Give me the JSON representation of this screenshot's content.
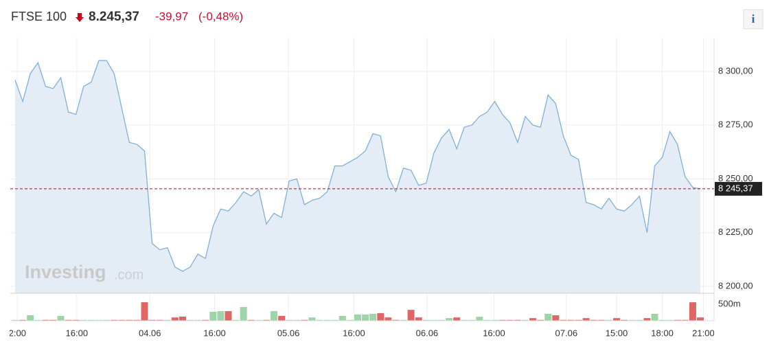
{
  "header": {
    "name": "FTSE 100",
    "price": "8.245,37",
    "change": "-39,97",
    "change_percent": "(-0,48%)",
    "info": "i"
  },
  "chart_data": {
    "type": "line",
    "watermark": [
      "Investing",
      ".com"
    ],
    "line_color": "#7fb0d8",
    "area_color": "#e4edf5",
    "up_color": "#9fd3a8",
    "down_color": "#e06666",
    "values": [
      8296,
      8286,
      8299,
      8304,
      8293,
      8292,
      8297,
      8281,
      8280,
      8293,
      8295,
      8305,
      8305,
      8299,
      8283,
      8267,
      8266,
      8263,
      8220,
      8217,
      8218,
      8209,
      8207,
      8209,
      8215,
      8213,
      8228,
      8236,
      8235,
      8239,
      8244,
      8242,
      8245,
      8229,
      8234,
      8232,
      8249,
      8250,
      8238,
      8240,
      8241,
      8244,
      8256,
      8256,
      8258,
      8260,
      8263,
      8271,
      8270,
      8251,
      8244,
      8255,
      8254,
      8247,
      8248,
      8262,
      8269,
      8273,
      8264,
      8274,
      8275,
      8279,
      8281,
      8286,
      8280,
      8276,
      8267,
      8279,
      8275,
      8274,
      8289,
      8285,
      8270,
      8261,
      8259,
      8239,
      8238,
      8236,
      8241,
      8236,
      8235,
      8238,
      8242,
      8225,
      8256,
      8260,
      8272,
      8266,
      8251,
      8246,
      8245.37
    ],
    "volumes": [
      25,
      25,
      165,
      25,
      25,
      25,
      145,
      25,
      25,
      25,
      25,
      25,
      25,
      25,
      25,
      25,
      25,
      560,
      25,
      25,
      25,
      100,
      125,
      25,
      25,
      25,
      270,
      290,
      290,
      25,
      415,
      25,
      25,
      25,
      290,
      145,
      25,
      25,
      25,
      100,
      25,
      25,
      25,
      145,
      25,
      190,
      190,
      210,
      230,
      100,
      25,
      25,
      330,
      100,
      25,
      25,
      25,
      80,
      100,
      25,
      25,
      120,
      25,
      25,
      25,
      25,
      25,
      25,
      80,
      25,
      210,
      165,
      25,
      25,
      25,
      80,
      25,
      25,
      25,
      80,
      25,
      25,
      25,
      80,
      210,
      25,
      25,
      25,
      25,
      560,
      100
    ],
    "current": 8245.37,
    "current_label": "8 245,37",
    "ylim": [
      8196.8,
      8315.6
    ],
    "yticks": [
      {
        "value": 8200,
        "label": "8 200,00"
      },
      {
        "value": 8225,
        "label": "8 225,00"
      },
      {
        "value": 8250,
        "label": "8 250,00"
      },
      {
        "value": 8275,
        "label": "8 275,00"
      },
      {
        "value": 8300,
        "label": "8 300,00"
      }
    ],
    "vlim": [
      0,
      770
    ],
    "vticks": [
      {
        "value": 500,
        "label": "500m"
      }
    ],
    "xlim": [
      0,
      90
    ],
    "xticks": [
      {
        "value": 0.3,
        "label": "2:00"
      },
      {
        "value": 8.1,
        "label": "16:00"
      },
      {
        "value": 17.7,
        "label": "04.06"
      },
      {
        "value": 26.2,
        "label": "16:00"
      },
      {
        "value": 35.9,
        "label": "05.06"
      },
      {
        "value": 44.5,
        "label": "16:00"
      },
      {
        "value": 54.1,
        "label": "06.06"
      },
      {
        "value": 62.9,
        "label": "16:00"
      },
      {
        "value": 72.4,
        "label": "07.06"
      },
      {
        "value": 79.0,
        "label": "15:00"
      },
      {
        "value": 85.0,
        "label": "18:00"
      },
      {
        "value": 90.4,
        "label": "21:00"
      }
    ],
    "grid": true
  }
}
